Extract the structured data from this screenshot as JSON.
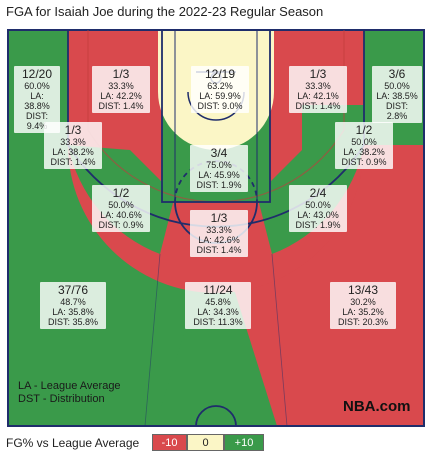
{
  "title": "FGA for Isaiah Joe during the 2022-23 Regular Season",
  "chart_data": {
    "type": "heatmap",
    "zones": [
      {
        "id": "left-corner-3",
        "made": 12,
        "attempted": 20,
        "frac": "12/20",
        "pct": "60.0%",
        "la": "LA: 38.8%",
        "dist": "DIST: 9.4%",
        "color": "#3a9a4a"
      },
      {
        "id": "left-mid-top",
        "made": 1,
        "attempted": 3,
        "frac": "1/3",
        "pct": "33.3%",
        "la": "LA: 42.2%",
        "dist": "DIST: 1.4%",
        "color": "#d9494d"
      },
      {
        "id": "restricted-paint",
        "made": 12,
        "attempted": 19,
        "frac": "12/19",
        "pct": "63.2%",
        "la": "LA: 59.9%",
        "dist": "DIST: 9.0%",
        "color": "#fbf6c6"
      },
      {
        "id": "right-mid-top",
        "made": 1,
        "attempted": 3,
        "frac": "1/3",
        "pct": "33.3%",
        "la": "LA: 42.1%",
        "dist": "DIST: 1.4%",
        "color": "#d9494d"
      },
      {
        "id": "right-corner-3",
        "made": 3,
        "attempted": 6,
        "frac": "3/6",
        "pct": "50.0%",
        "la": "LA: 38.5%",
        "dist": "DIST: 2.8%",
        "color": "#3a9a4a"
      },
      {
        "id": "left-baseline-mid",
        "made": 1,
        "attempted": 3,
        "frac": "1/3",
        "pct": "33.3%",
        "la": "LA: 38.2%",
        "dist": "DIST: 1.4%",
        "color": "#d9494d"
      },
      {
        "id": "paint-non-ra",
        "made": 3,
        "attempted": 4,
        "frac": "3/4",
        "pct": "75.0%",
        "la": "LA: 45.9%",
        "dist": "DIST: 1.9%",
        "color": "#3a9a4a"
      },
      {
        "id": "right-baseline-mid",
        "made": 1,
        "attempted": 2,
        "frac": "1/2",
        "pct": "50.0%",
        "la": "LA: 38.2%",
        "dist": "DIST: 0.9%",
        "color": "#3a9a4a"
      },
      {
        "id": "left-wing-mid",
        "made": 1,
        "attempted": 2,
        "frac": "1/2",
        "pct": "50.0%",
        "la": "LA: 40.6%",
        "dist": "DIST: 0.9%",
        "color": "#3a9a4a"
      },
      {
        "id": "right-wing-mid",
        "made": 2,
        "attempted": 4,
        "frac": "2/4",
        "pct": "50.0%",
        "la": "LA: 43.0%",
        "dist": "DIST: 1.9%",
        "color": "#3a9a4a"
      },
      {
        "id": "top-key-mid",
        "made": 1,
        "attempted": 3,
        "frac": "1/3",
        "pct": "33.3%",
        "la": "LA: 42.6%",
        "dist": "DIST: 1.4%",
        "color": "#d9494d"
      },
      {
        "id": "left-wing-3",
        "made": 37,
        "attempted": 76,
        "frac": "37/76",
        "pct": "48.7%",
        "la": "LA: 35.8%",
        "dist": "DIST: 35.8%",
        "color": "#3a9a4a"
      },
      {
        "id": "center-3",
        "made": 11,
        "attempted": 24,
        "frac": "11/24",
        "pct": "45.8%",
        "la": "LA: 34.3%",
        "dist": "DIST: 11.3%",
        "color": "#3a9a4a"
      },
      {
        "id": "right-wing-3",
        "made": 13,
        "attempted": 43,
        "frac": "13/43",
        "pct": "30.2%",
        "la": "LA: 35.2%",
        "dist": "DIST: 20.3%",
        "color": "#d9494d"
      }
    ]
  },
  "legend_notes": {
    "la": "LA - League Average",
    "dst": "DST - Distribution"
  },
  "brand": "NBA.com",
  "scale": {
    "label": "FG% vs League Average",
    "items": [
      {
        "label": "-10",
        "color": "#d9494d"
      },
      {
        "label": "0",
        "color": "#fbf6c6"
      },
      {
        "label": "+10",
        "color": "#3a9a4a"
      }
    ]
  }
}
